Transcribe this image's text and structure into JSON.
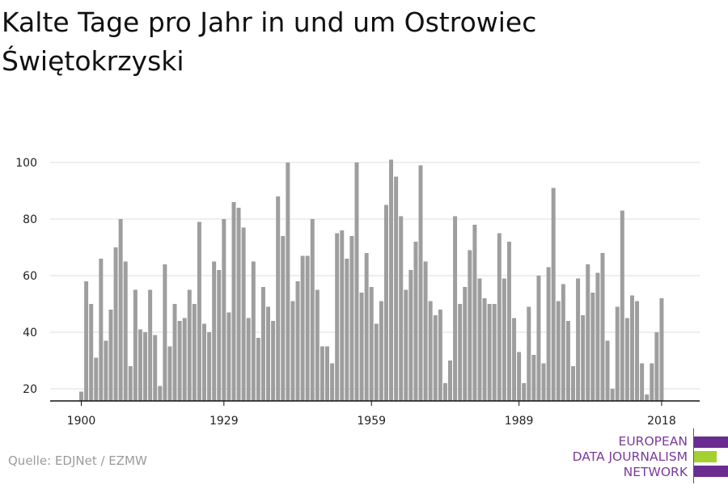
{
  "title": "Kalte Tage pro Jahr in und um Ostrowiec Świętokrzyski",
  "source": "Quelle: EDJNet / EZMW",
  "logo": {
    "line1": "EUROPEAN",
    "line2": "DATA JOURNALISM",
    "line3": "NETWORK",
    "colors": [
      "#6a2c91",
      "#a3d12f",
      "#6a2c91"
    ]
  },
  "chart_data": {
    "type": "bar",
    "title": "Kalte Tage pro Jahr in und um Ostrowiec Świętokrzyski",
    "xlabel": "",
    "ylabel": "",
    "x_start": 1900,
    "x_end": 2021,
    "xticks": [
      1900,
      1929,
      1959,
      1989,
      2018
    ],
    "yticks": [
      20,
      40,
      60,
      80,
      100
    ],
    "ylim": [
      15,
      105
    ],
    "grid": true,
    "bar_color": "#9e9e9e",
    "values": [
      19,
      58,
      50,
      31,
      66,
      37,
      48,
      70,
      80,
      65,
      28,
      55,
      41,
      40,
      55,
      39,
      21,
      64,
      35,
      50,
      44,
      45,
      55,
      50,
      79,
      43,
      40,
      65,
      62,
      80,
      47,
      86,
      84,
      77,
      45,
      65,
      38,
      56,
      49,
      44,
      88,
      74,
      100,
      51,
      58,
      67,
      67,
      80,
      55,
      35,
      35,
      29,
      75,
      76,
      66,
      74,
      100,
      54,
      68,
      56,
      43,
      51,
      85,
      101,
      95,
      81,
      55,
      62,
      72,
      99,
      65,
      51,
      46,
      48,
      22,
      30,
      81,
      50,
      56,
      69,
      78,
      59,
      52,
      50,
      50,
      75,
      59,
      72,
      45,
      33,
      22,
      49,
      32,
      60,
      29,
      63,
      91,
      51,
      57,
      44,
      28,
      59,
      46,
      64,
      54,
      61,
      68,
      37,
      20,
      49,
      83,
      45,
      53,
      51,
      29,
      18,
      29,
      40,
      52
    ]
  }
}
